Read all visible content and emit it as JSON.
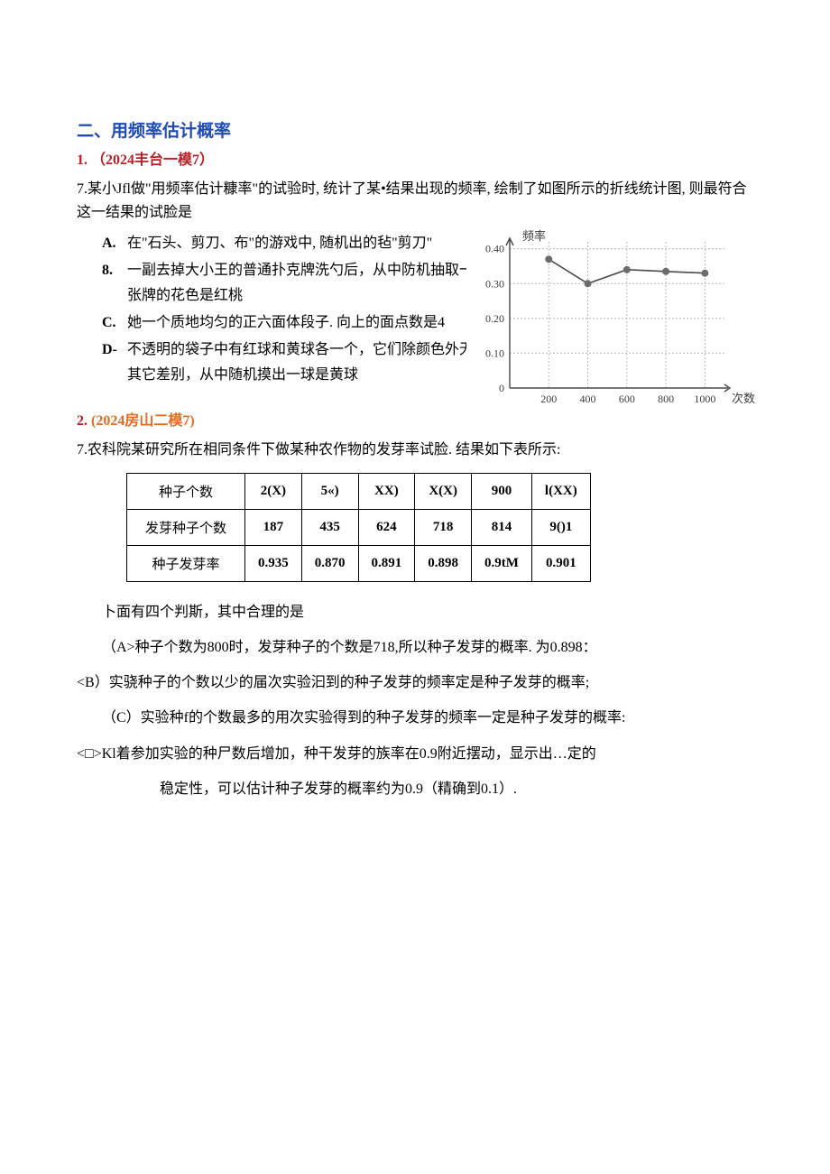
{
  "section_title": "二、用频率估计概率",
  "q1": {
    "heading_num": "1.",
    "heading_src": "（2024丰台一模7）",
    "intro": "7.某小Jfl做\"用频率估计糠率\"的试验时, 统计了某•结果出现的频率, 绘制了如图所示的折线统计图, 则最符合这一结果的试脸是",
    "options": {
      "A": {
        "label": "A.",
        "text": "在\"石头、剪刀、布\"的游戏中, 随机出的毡\"剪刀\""
      },
      "B": {
        "label": "8.",
        "text": "一副去掉大小王的普通扑克牌洗勺后，从中防机抽取一张牌的花色是红桃"
      },
      "C": {
        "label": "C.",
        "text": "她一个质地均匀的正六面体段子. 向上的面点数是4"
      },
      "D": {
        "label": "D-",
        "text": "不透明的袋子中有红球和黄球各一个，它们除颜色外无其它差别，从中随机摸出一球是黄球"
      }
    },
    "chart": {
      "type": "line",
      "x_label": "次数",
      "y_label": "频率",
      "x_ticks": [
        200,
        400,
        600,
        800,
        1000
      ],
      "y_ticks": [
        0,
        0.1,
        0.2,
        0.3,
        0.4
      ],
      "y_tick_labels": [
        "0",
        "0.10",
        "0.20",
        "0.30",
        "0.40"
      ],
      "xlim": [
        0,
        1100
      ],
      "ylim": [
        0,
        0.42
      ],
      "points": [
        {
          "x": 200,
          "y": 0.37
        },
        {
          "x": 400,
          "y": 0.3
        },
        {
          "x": 600,
          "y": 0.34
        },
        {
          "x": 800,
          "y": 0.335
        },
        {
          "x": 1000,
          "y": 0.33
        }
      ],
      "line_color": "#4a4a4a",
      "marker_fill": "#6b6b6b",
      "marker_stroke": "#6b6b6b",
      "marker_size": 3.5,
      "line_width": 1.6,
      "grid_color": "#b9b9b9",
      "grid_dash": "2,2",
      "axis_color": "#4a4a4a",
      "label_color": "#3a3a3a",
      "label_fontsize": 13,
      "tick_fontsize": 12,
      "background_color": "#ffffff"
    }
  },
  "q2": {
    "heading_num": "2.",
    "heading_src": "(2024房山二模7)",
    "intro": "7.农科院某研究所在相同条件下做某种农作物的发芽率试脸. 结果如下表所示:",
    "table": {
      "columns": [
        "种子个数",
        "2(X)",
        "5«)",
        "XX)",
        "X(X)",
        "900",
        "l(XX)"
      ],
      "rows": [
        [
          "发芽种子个数",
          "187",
          "435",
          "624",
          "718",
          "814",
          "9()1"
        ],
        [
          "种子发芽率",
          "0.935",
          "0.870",
          "0.891",
          "0.898",
          "0.9tM",
          "0.901"
        ]
      ]
    },
    "after_table": "卜面有四个判斯，其中合理的是",
    "choices": {
      "A": "（A>种子个数为800时，发芽种子的个数是718,所以种子发芽的概率. 为0.898：",
      "B": "<B）实骁种子的个数以少的届次实验汩到的种子发芽的频率定是种子发芽的概率;",
      "C": "（C）实验种f的个数最多的用次实验得到的种子发芽的频率一定是种子发芽的概率:",
      "D1": "<□>Kl着参加实验的种尸数后增加，种干发芽的族率在0.9附近摆动，显示出…定的",
      "D2": "稳定性，可以估计种子发芽的概率约为0.9（精确到0.1）."
    }
  }
}
